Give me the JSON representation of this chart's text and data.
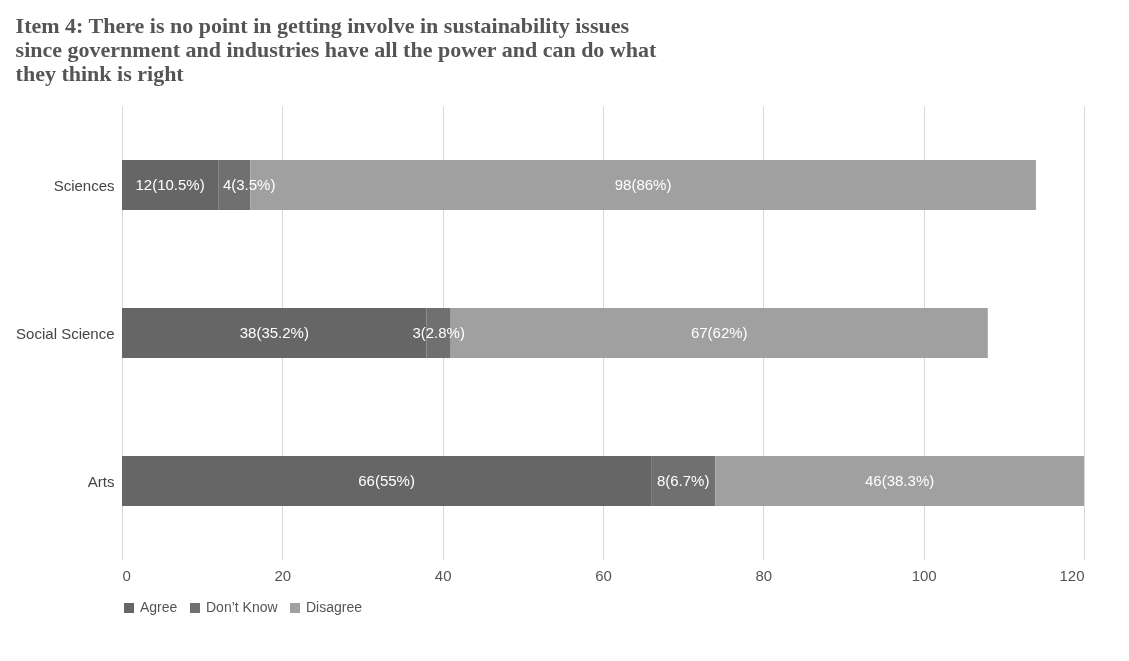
{
  "chart_data": {
    "type": "bar",
    "orientation": "horizontal",
    "stacked": true,
    "title": "Item 4: There is no point in getting involve in sustainability issues since government and industries have all the power and can do what they think is right",
    "categories": [
      "Sciences",
      "Social Science",
      "Arts"
    ],
    "series": [
      {
        "name": "Agree",
        "color": "#666666",
        "values": [
          12,
          38,
          66
        ],
        "value_labels": [
          "12(10.5%)",
          "38(35.2%)",
          "66(55%)"
        ]
      },
      {
        "name": "Don’t Know",
        "color": "#707070",
        "values": [
          4,
          3,
          8
        ],
        "value_labels": [
          "4(3.5%)",
          "3(2.8%)",
          "8(6.7%)"
        ]
      },
      {
        "name": "Disagree",
        "color": "#a0a0a0",
        "values": [
          98,
          67,
          46
        ],
        "value_labels": [
          "98(86%)",
          "67(62%)",
          "46(38.3%)"
        ]
      }
    ],
    "xlim": [
      0,
      120
    ],
    "xticks": [
      0,
      20,
      40,
      60,
      80,
      100,
      120
    ],
    "grid": "x",
    "legend": "bottom"
  }
}
